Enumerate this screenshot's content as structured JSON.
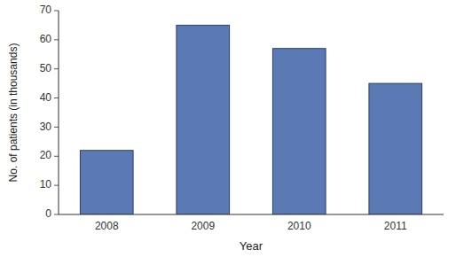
{
  "chart_data": {
    "type": "bar",
    "categories": [
      "2008",
      "2009",
      "2010",
      "2011"
    ],
    "values": [
      22,
      65,
      57,
      45
    ],
    "color": "#5b7ab5",
    "xlabel": "Year",
    "ylabel": "No. of patients (in thousands)",
    "ylim": [
      0,
      70
    ],
    "yticks": [
      0,
      10,
      20,
      30,
      40,
      50,
      60,
      70
    ],
    "grid": false
  }
}
